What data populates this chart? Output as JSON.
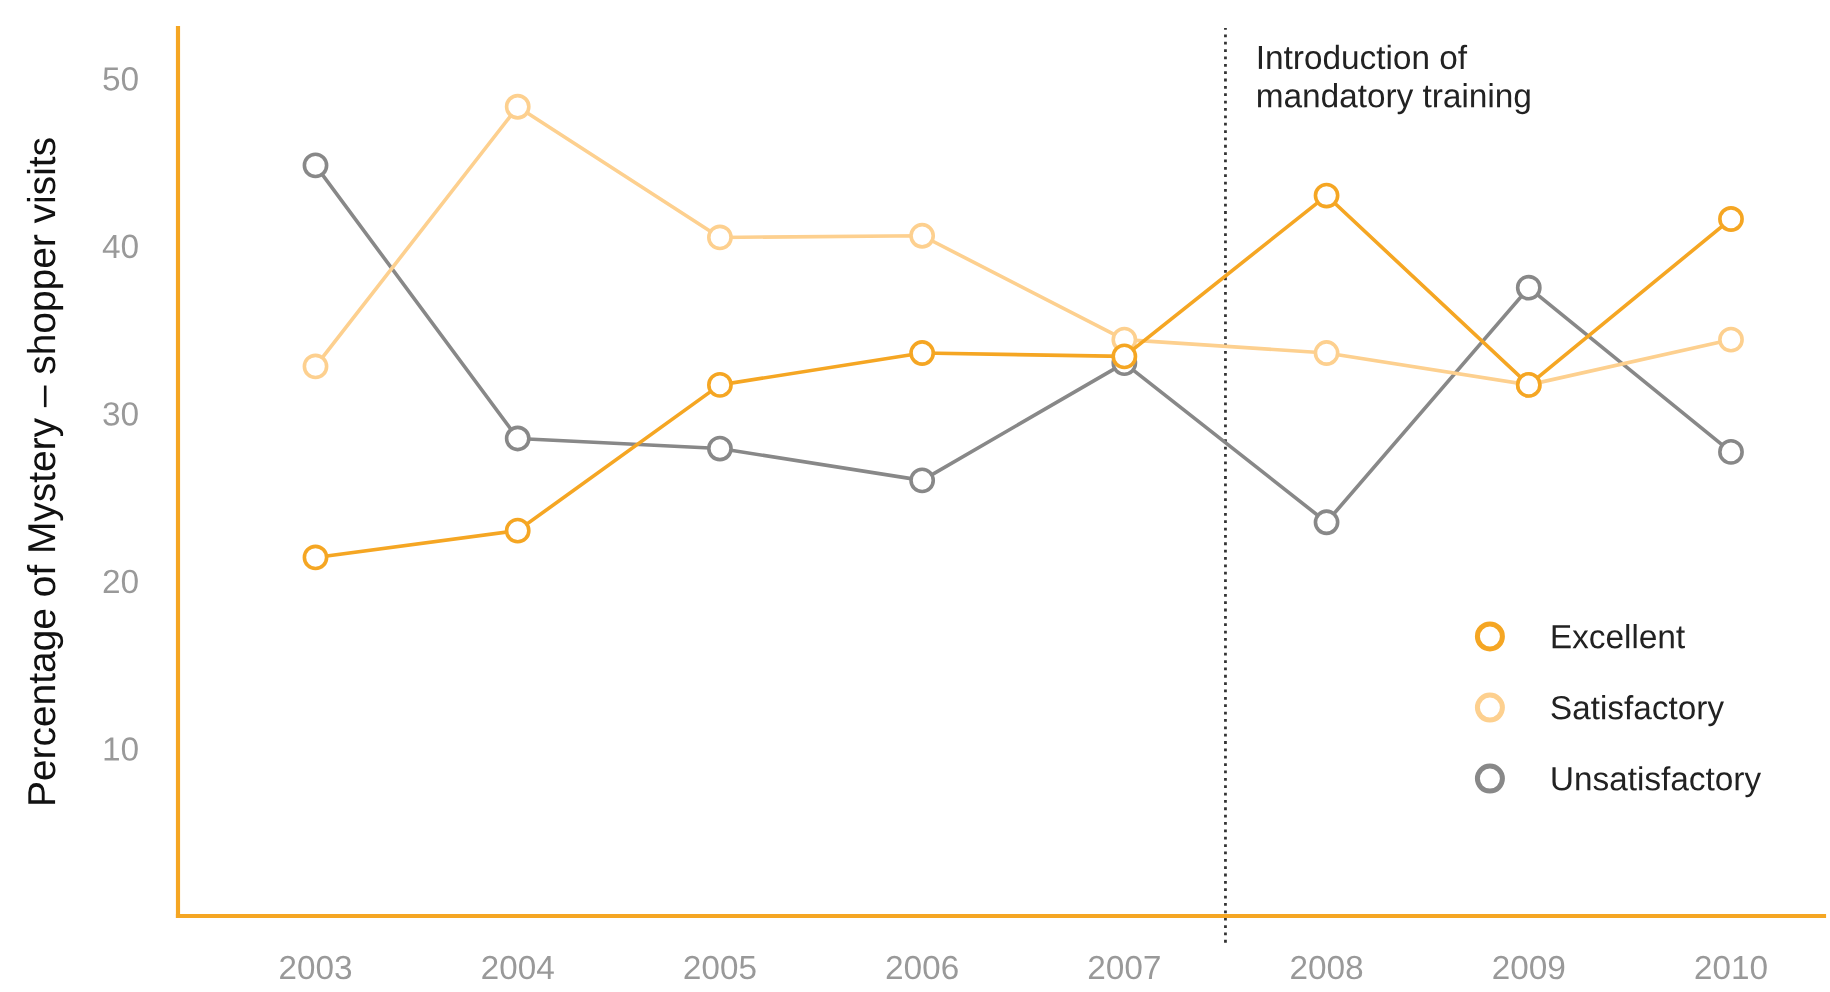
{
  "chart_data": {
    "type": "line",
    "ylabel": "Percentage of Mystery – shopper visits",
    "x": [
      2003,
      2004,
      2005,
      2006,
      2007,
      2008,
      2009,
      2010
    ],
    "series": [
      {
        "name": "Excellent",
        "color": "#f5a623",
        "values": [
          21.4,
          23.0,
          31.7,
          33.6,
          33.4,
          43.0,
          31.7,
          41.6
        ]
      },
      {
        "name": "Satisfactory",
        "color": "#fdd08f",
        "values": [
          32.8,
          48.3,
          40.5,
          40.6,
          34.4,
          33.6,
          31.7,
          34.4
        ]
      },
      {
        "name": "Unsatisfactory",
        "color": "#888888",
        "values": [
          44.8,
          28.5,
          27.9,
          26.0,
          33.0,
          23.5,
          37.5,
          27.7
        ]
      }
    ],
    "xlim": [
      2002.32,
      2010.46
    ],
    "xticks": [
      2003,
      2004,
      2005,
      2006,
      2007,
      2008,
      2009,
      2010
    ],
    "ylim": [
      0,
      53
    ],
    "yticks": [
      10,
      20,
      30,
      40,
      50
    ],
    "ref_lines": [
      {
        "axis": "x",
        "value": 2007.5,
        "label": "Introduction of\nmandatory training",
        "color": "#333333",
        "line_style": "dotted"
      }
    ],
    "grid": false,
    "legend": "bottom right",
    "marker": "circle",
    "line_style": "solid"
  }
}
